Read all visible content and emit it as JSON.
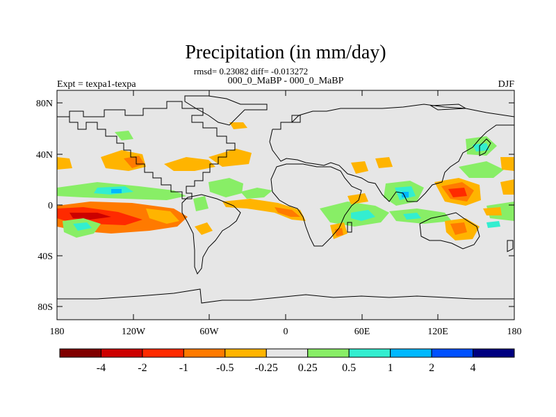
{
  "title": "Precipitation (in mm/day)",
  "stats_line": "rmsd= 0.23082 diff= -0.013272",
  "left_label": "Expt = texpa1-texpa",
  "center_label": "000_0_MaBP - 000_0_MaBP",
  "right_label": "DJF",
  "colors": {
    "background": "#ffffff",
    "neutral_fill": "#e6e6e6",
    "coastline": "#000000"
  },
  "axes": {
    "x_ticks": [
      "180",
      "120W",
      "60W",
      "0",
      "60E",
      "120E",
      "180"
    ],
    "y_ticks": [
      "80N",
      "40N",
      "0",
      "40S",
      "80S"
    ]
  },
  "colorbar": {
    "bins": [
      "#800000",
      "#cc0000",
      "#ff2a00",
      "#ff7a00",
      "#ffb400",
      "#e6e6e6",
      "#88ee66",
      "#33eed0",
      "#00b8ff",
      "#0050ff",
      "#000080"
    ],
    "labels": [
      "-4",
      "-2",
      "-1",
      "-0.5",
      "-0.25",
      "0.25",
      "0.5",
      "1",
      "2",
      "4"
    ]
  }
}
